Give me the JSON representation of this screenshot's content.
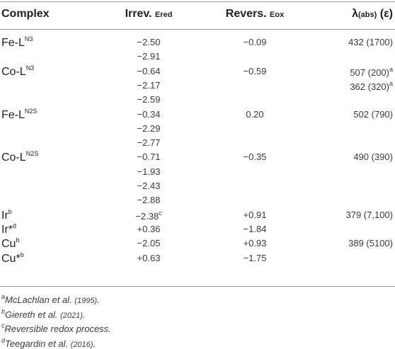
{
  "headers": {
    "complex": "Complex",
    "irrev_main": "Irrev.",
    "irrev_sub": "Ered",
    "revers_main": "Revers.",
    "revers_sub": "Eox",
    "lambda_main": "λ",
    "lambda_sub": "(abs)",
    "lambda_tail": "(ε)"
  },
  "rows": [
    {
      "complex": "Fe-L",
      "complex_sup": "N3",
      "ered": "−2.50",
      "eox": "−0.09",
      "lambda": "432 (1700)"
    },
    {
      "complex": "",
      "complex_sup": "",
      "ered": "−2.91",
      "eox": "",
      "lambda": ""
    },
    {
      "complex": "Co-L",
      "complex_sup": "N3",
      "ered": "−0.64",
      "eox": "−0.59",
      "lambda": "507 (200)",
      "lambda_sup": "a"
    },
    {
      "complex": "",
      "complex_sup": "",
      "ered": "−2.17",
      "eox": "",
      "lambda": "362 (320)",
      "lambda_sup": "a"
    },
    {
      "complex": "",
      "complex_sup": "",
      "ered": "−2.59",
      "eox": "",
      "lambda": ""
    },
    {
      "complex": "Fe-L",
      "complex_sup": "N2S",
      "ered": "−0.34",
      "eox": "0.20",
      "lambda": "502 (790)"
    },
    {
      "complex": "",
      "complex_sup": "",
      "ered": "−2.29",
      "eox": "",
      "lambda": ""
    },
    {
      "complex": "",
      "complex_sup": "",
      "ered": "−2.77",
      "eox": "",
      "lambda": ""
    },
    {
      "complex": "Co-L",
      "complex_sup": "N2S",
      "ered": "−0.71",
      "eox": "−0.35",
      "lambda": "490 (390)"
    },
    {
      "complex": "",
      "complex_sup": "",
      "ered": "−1.93",
      "eox": "",
      "lambda": ""
    },
    {
      "complex": "",
      "complex_sup": "",
      "ered": "−2.43",
      "eox": "",
      "lambda": ""
    },
    {
      "complex": "",
      "complex_sup": "",
      "ered": "−2.88",
      "eox": "",
      "lambda": ""
    },
    {
      "complex": "Ir",
      "complex_sup": "b",
      "ered": "−2.38",
      "ered_sup": "c",
      "eox": "+0.91",
      "lambda": "379 (7,100)"
    },
    {
      "complex": "Ir*",
      "complex_sup": "d",
      "ered": "+0.36",
      "eox": "−1.84",
      "lambda": ""
    },
    {
      "complex": "Cu",
      "complex_sup": "b",
      "ered": "−2.05",
      "eox": "+0.93",
      "lambda": "389 (5100)"
    },
    {
      "complex": "Cu*",
      "complex_sup": "b",
      "ered": "+0.63",
      "eox": "−1.75",
      "lambda": ""
    }
  ],
  "footnotes": [
    {
      "mark": "a",
      "text": "McLachlan et al. ",
      "cite": "(1995)",
      "end": "."
    },
    {
      "mark": "b",
      "text": "Giereth et al. ",
      "cite": "(2021)",
      "end": "."
    },
    {
      "mark": "c",
      "text": "Reversible redox process.",
      "cite": "",
      "end": ""
    },
    {
      "mark": "d",
      "text": "Teegardin et al. ",
      "cite": "(2016)",
      "end": "."
    }
  ]
}
